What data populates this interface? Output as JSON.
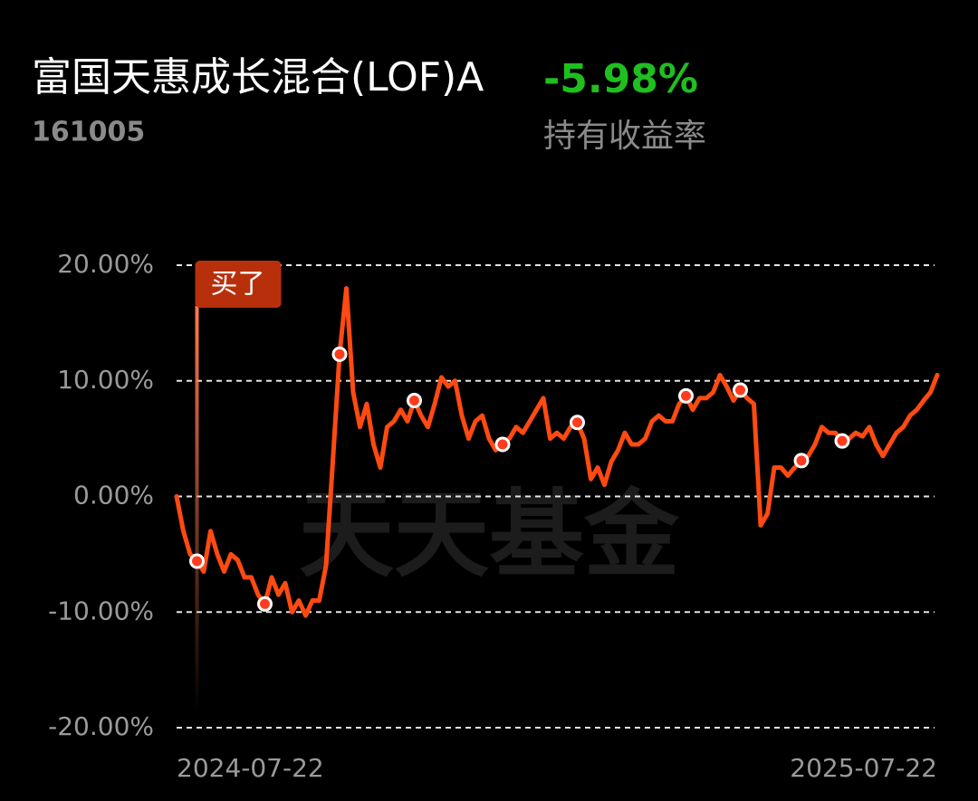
{
  "header": {
    "title": "富国天惠成长混合(LOF)A",
    "code": "161005",
    "return_label": "-5.98%",
    "return_caption": "持有收益率"
  },
  "watermark": "天天基金",
  "chart_data": {
    "type": "line",
    "annotation": "买了",
    "ylim": [
      -20,
      20
    ],
    "yticks": [
      {
        "value": 20,
        "label": "20.00%"
      },
      {
        "value": 10,
        "label": "10.00%"
      },
      {
        "value": 0,
        "label": "0.00%"
      },
      {
        "value": -10,
        "label": "-10.00%"
      },
      {
        "value": -20,
        "label": "-20.00%"
      }
    ],
    "grid": true,
    "categories": [
      "2024-07-22",
      null,
      null,
      null,
      null,
      null,
      null,
      null,
      null,
      null,
      null,
      null,
      null,
      null,
      null,
      null,
      null,
      null,
      null,
      null,
      null,
      null,
      null,
      null,
      null,
      null,
      null,
      null,
      null,
      null,
      null,
      null,
      null,
      null,
      null,
      null,
      null,
      null,
      null,
      null,
      null,
      null,
      null,
      null,
      null,
      null,
      null,
      null,
      null,
      null,
      null,
      null,
      null,
      null,
      null,
      null,
      null,
      null,
      null,
      null,
      null,
      null,
      null,
      null,
      null,
      null,
      null,
      null,
      null,
      null,
      null,
      null,
      null,
      null,
      null,
      null,
      null,
      null,
      null,
      null,
      null,
      null,
      null,
      null,
      null,
      null,
      null,
      null,
      null,
      null,
      null,
      null,
      null,
      null,
      null,
      null,
      null,
      null,
      null,
      null,
      null,
      null,
      null,
      null,
      null,
      null,
      null,
      null,
      null,
      null,
      null,
      null,
      "2025-07-22"
    ],
    "series": [
      {
        "color": "#ff4a12",
        "values": [
          0,
          -3,
          -5,
          -5.6,
          -6.5,
          -3,
          -5,
          -6.5,
          -5,
          -5.5,
          -7,
          -7,
          -8.5,
          -9.3,
          -7,
          -8.5,
          -7.5,
          -10,
          -9,
          -10.3,
          -9,
          -9,
          -6,
          3,
          12.3,
          18,
          9,
          6,
          8,
          4.5,
          2.5,
          6,
          6.5,
          7.5,
          6.5,
          8.3,
          7,
          6,
          8,
          10.3,
          9.5,
          10,
          7,
          5,
          6.5,
          7,
          5,
          4,
          4.5,
          5,
          6,
          5.5,
          6.5,
          7.5,
          8.5,
          5,
          5.5,
          5,
          6,
          6.4,
          5,
          1.5,
          2.5,
          1,
          3,
          4,
          5.5,
          4.5,
          4.5,
          5,
          6.5,
          7,
          6.5,
          6.5,
          8,
          8.7,
          7.5,
          8.5,
          8.5,
          9,
          10.5,
          9.5,
          8.3,
          9.2,
          8.5,
          8,
          -2.5,
          -1.5,
          2.5,
          2.5,
          1.8,
          2.5,
          3.1,
          3.5,
          4.5,
          6,
          5.5,
          5.5,
          4.8,
          5,
          5.5,
          5.2,
          6,
          4.5,
          3.5,
          4.5,
          5.5,
          6,
          7,
          7.5,
          8.3,
          9,
          10.5
        ]
      }
    ],
    "markers": {
      "color": "#ff3b1f",
      "values": [
        null,
        null,
        null,
        -5.6,
        null,
        null,
        null,
        null,
        null,
        null,
        null,
        null,
        null,
        -9.3,
        null,
        null,
        null,
        null,
        null,
        null,
        null,
        null,
        null,
        null,
        12.3,
        null,
        null,
        null,
        null,
        null,
        null,
        null,
        null,
        null,
        null,
        8.3,
        null,
        null,
        null,
        null,
        null,
        null,
        null,
        null,
        null,
        null,
        null,
        null,
        4.5,
        null,
        null,
        null,
        null,
        null,
        null,
        null,
        null,
        null,
        null,
        6.4,
        null,
        null,
        null,
        null,
        null,
        null,
        null,
        null,
        null,
        null,
        null,
        null,
        null,
        null,
        null,
        8.7,
        null,
        null,
        null,
        null,
        null,
        null,
        null,
        9.2,
        null,
        null,
        null,
        null,
        null,
        null,
        null,
        null,
        3.1,
        null,
        null,
        null,
        null,
        null,
        4.8,
        null,
        null,
        null,
        null,
        null,
        null,
        null,
        null,
        null,
        null,
        null,
        null,
        null,
        null
      ]
    }
  }
}
